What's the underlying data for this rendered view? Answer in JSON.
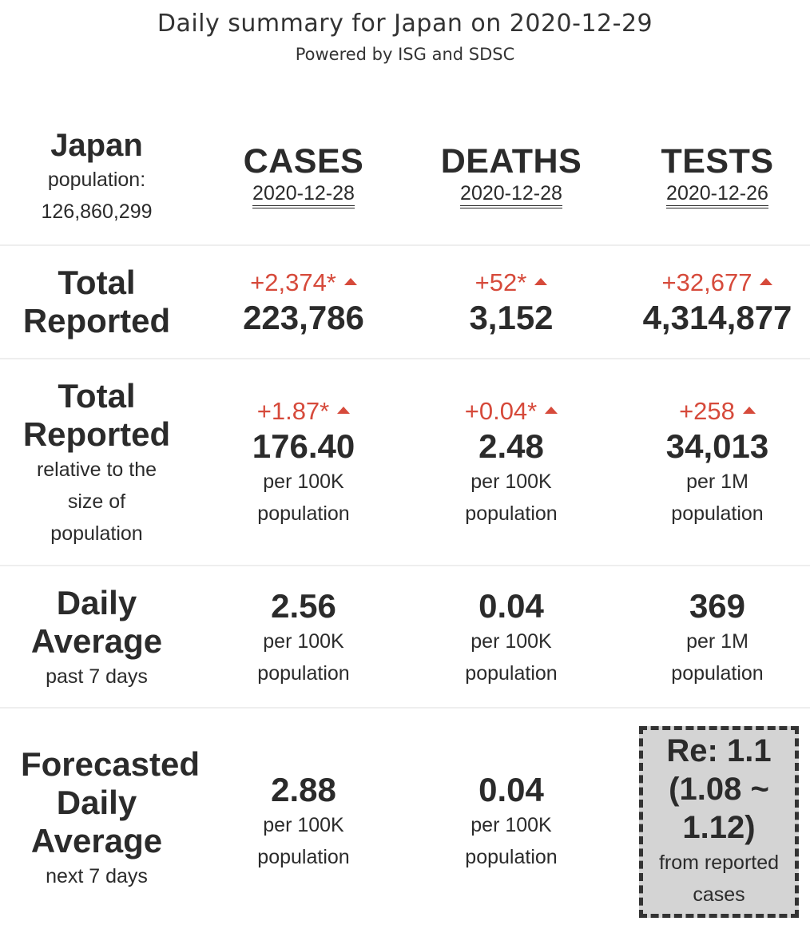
{
  "header": {
    "title": "Daily summary for Japan on 2020-12-29",
    "subtitle": "Powered by ISG and SDSC"
  },
  "country": {
    "name": "Japan",
    "population_label": "population:",
    "population": "126,860,299"
  },
  "columns": [
    {
      "name": "CASES",
      "date": "2020-12-28"
    },
    {
      "name": "DEATHS",
      "date": "2020-12-28"
    },
    {
      "name": "TESTS",
      "date": "2020-12-26"
    }
  ],
  "rows": {
    "total": {
      "label_line1": "Total",
      "label_line2": "Reported",
      "cells": [
        {
          "delta": "+2,374*",
          "value": "223,786"
        },
        {
          "delta": "+52*",
          "value": "3,152"
        },
        {
          "delta": "+32,677",
          "value": "4,314,877"
        }
      ]
    },
    "relative": {
      "label_line1": "Total",
      "label_line2": "Reported",
      "sub_line1": "relative to the",
      "sub_line2": "size of",
      "sub_line3": "population",
      "cells": [
        {
          "delta": "+1.87*",
          "value": "176.40",
          "unit1": "per 100K",
          "unit2": "population"
        },
        {
          "delta": "+0.04*",
          "value": "2.48",
          "unit1": "per 100K",
          "unit2": "population"
        },
        {
          "delta": "+258",
          "value": "34,013",
          "unit1": "per 1M",
          "unit2": "population"
        }
      ]
    },
    "daily_avg": {
      "label_line1": "Daily",
      "label_line2": "Average",
      "sub": "past 7 days",
      "cells": [
        {
          "value": "2.56",
          "unit1": "per 100K",
          "unit2": "population"
        },
        {
          "value": "0.04",
          "unit1": "per 100K",
          "unit2": "population"
        },
        {
          "value": "369",
          "unit1": "per 1M",
          "unit2": "population"
        }
      ]
    },
    "forecast": {
      "label_line1": "Forecasted",
      "label_line2": "Daily",
      "label_line3": "Average",
      "sub": "next 7 days",
      "cells": [
        {
          "value": "2.88",
          "unit1": "per 100K",
          "unit2": "population"
        },
        {
          "value": "0.04",
          "unit1": "per 100K",
          "unit2": "population"
        }
      ],
      "re": {
        "line1": "Re: 1.1",
        "line2": "(1.08 ~",
        "line3": "1.12)",
        "sub1": "from reported",
        "sub2": "cases"
      }
    }
  },
  "colors": {
    "text": "#2b2b2b",
    "increase": "#d64a3b",
    "re_box_bg": "#d4d4d4"
  },
  "icons": {
    "increase": "triangle-up-icon"
  }
}
